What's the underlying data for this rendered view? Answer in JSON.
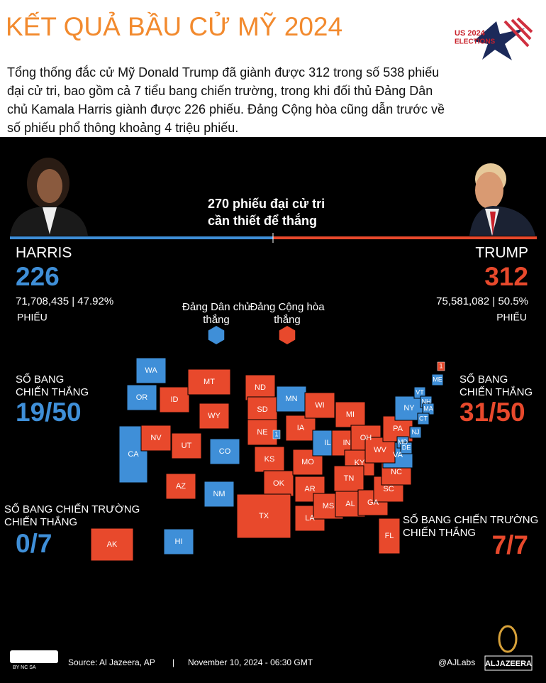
{
  "header": {
    "title": "KẾT QUẢ BẦU CỬ MỸ 2024",
    "logo": [
      "US 2024",
      "ELECTIONS"
    ],
    "summary": [
      "Tổng thống đắc cử Mỹ Donald Trump đã giành được 312 trong số 538 phiếu",
      "đại cử tri, bao gồm cả 7 tiểu bang chiến trường, trong khi đối thủ Đảng Dân",
      "chủ Kamala Harris giành được 226 phiếu. Đảng Cộng hòa cũng dẫn trước về",
      "số phiếu phổ thông khoảng 4 triệu phiếu."
    ]
  },
  "threshold": [
    "270 phiếu đại cử tri",
    "cần thiết để thắng"
  ],
  "candidates": [
    {
      "name": "HARRIS",
      "electoral": "226",
      "popular": "71,708,435 | 47.92%",
      "unit": "PHIẾU",
      "states_label": [
        "SỐ BANG",
        "CHIẾN THẮNG"
      ],
      "states": "19/50",
      "battleground_label": [
        "SỐ BANG CHIẾN TRƯỜNG",
        "CHIẾN THẮNG"
      ],
      "battleground": "0/7",
      "color": "#3f8fd8"
    },
    {
      "name": "TRUMP",
      "electoral": "312",
      "popular": "75,581,082 | 50.5%",
      "unit": "PHIẾU",
      "states_label": [
        "SỐ BANG",
        "CHIẾN THẮNG"
      ],
      "states": "31/50",
      "battleground_label": [
        "SỐ BANG CHIẾN TRƯỜNG",
        "CHIẾN THẮNG"
      ],
      "battleground": "7/7",
      "color": "#e8492c"
    }
  ],
  "legend": [
    {
      "label": [
        "Đảng Dân chủ",
        "thắng"
      ],
      "winner": 0
    },
    {
      "label": [
        "Đảng Cộng hòa",
        "thắng"
      ],
      "winner": 1
    }
  ],
  "map": {
    "states": [
      {
        "label": "WA",
        "winner": 0
      },
      {
        "label": "OR",
        "winner": 0
      },
      {
        "label": "CA",
        "winner": 0
      },
      {
        "label": "NV",
        "winner": 1
      },
      {
        "label": "ID",
        "winner": 1
      },
      {
        "label": "MT",
        "winner": 1
      },
      {
        "label": "WY",
        "winner": 1
      },
      {
        "label": "UT",
        "winner": 1
      },
      {
        "label": "AZ",
        "winner": 1
      },
      {
        "label": "CO",
        "winner": 0
      },
      {
        "label": "NM",
        "winner": 0
      },
      {
        "label": "ND",
        "winner": 1
      },
      {
        "label": "SD",
        "winner": 1
      },
      {
        "label": "NE",
        "winner": 1
      },
      {
        "label": "KS",
        "winner": 1
      },
      {
        "label": "OK",
        "winner": 1
      },
      {
        "label": "TX",
        "winner": 1
      },
      {
        "label": "MN",
        "winner": 0
      },
      {
        "label": "IA",
        "winner": 1
      },
      {
        "label": "MO",
        "winner": 1
      },
      {
        "label": "AR",
        "winner": 1
      },
      {
        "label": "LA",
        "winner": 1
      },
      {
        "label": "WI",
        "winner": 1
      },
      {
        "label": "IL",
        "winner": 0
      },
      {
        "label": "MI",
        "winner": 1
      },
      {
        "label": "IN",
        "winner": 1
      },
      {
        "label": "OH",
        "winner": 1
      },
      {
        "label": "KY",
        "winner": 1
      },
      {
        "label": "TN",
        "winner": 1
      },
      {
        "label": "MS",
        "winner": 1
      },
      {
        "label": "AL",
        "winner": 1
      },
      {
        "label": "GA",
        "winner": 1
      },
      {
        "label": "FL",
        "winner": 1
      },
      {
        "label": "SC",
        "winner": 1
      },
      {
        "label": "NC",
        "winner": 1
      },
      {
        "label": "VA",
        "winner": 0
      },
      {
        "label": "WV",
        "winner": 1
      },
      {
        "label": "PA",
        "winner": 1
      },
      {
        "label": "NY",
        "winner": 0
      },
      {
        "label": "VT",
        "winner": 0
      },
      {
        "label": "NH",
        "winner": 0
      },
      {
        "label": "ME",
        "winner": 0
      },
      {
        "label": "MA",
        "winner": 0
      },
      {
        "label": "CT",
        "winner": 0
      },
      {
        "label": "NJ",
        "winner": 0
      },
      {
        "label": "MD",
        "winner": 0
      },
      {
        "label": "DE",
        "winner": 0
      },
      {
        "label": "AK",
        "winner": 1
      },
      {
        "label": "HI",
        "winner": 0
      }
    ],
    "markers": [
      {
        "label": "1",
        "winner": 0
      },
      {
        "label": "1",
        "winner": 1
      }
    ]
  },
  "footer": {
    "license": "BY NC SA",
    "source": "Source:  Al Jazeera, AP",
    "separator": "|",
    "date": "November 10, 2024 - 06:30 GMT",
    "handle": "@AJLabs",
    "brand": "ALJAZEERA"
  }
}
